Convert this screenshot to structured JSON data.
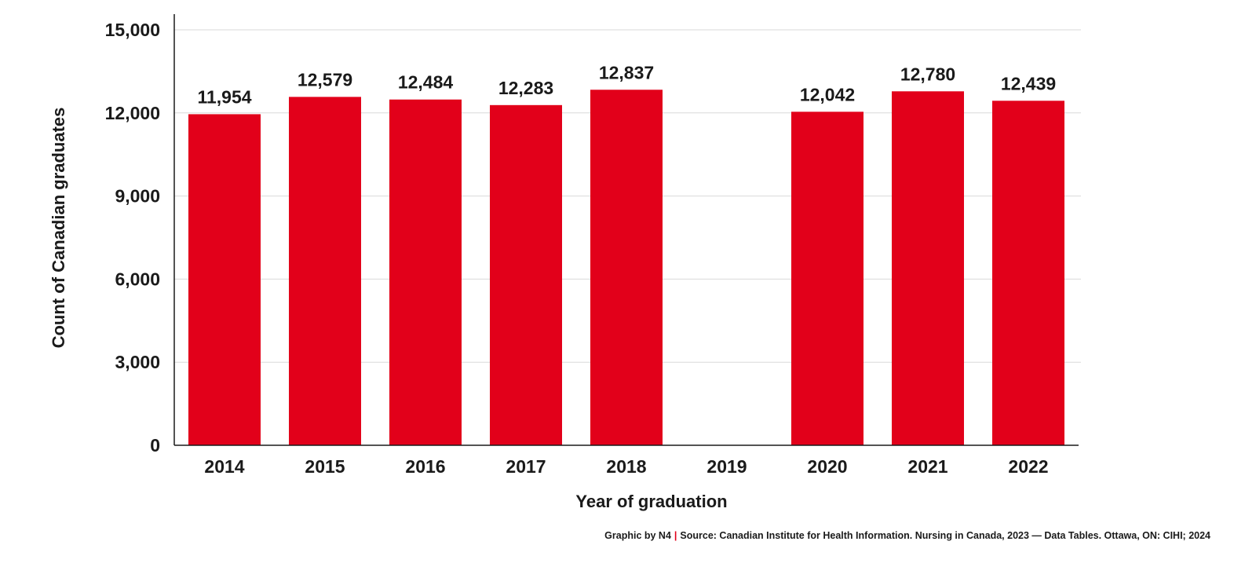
{
  "colors": {
    "bar": "#e2001a",
    "grid": "#d9d9d9",
    "axis": "#1a1a1a",
    "separator": "#e2001a"
  },
  "chart_data": {
    "type": "bar",
    "categories": [
      "2014",
      "2015",
      "2016",
      "2017",
      "2018",
      "2019",
      "2020",
      "2021",
      "2022"
    ],
    "values": [
      11954,
      12579,
      12484,
      12283,
      12837,
      null,
      12042,
      12780,
      12439
    ],
    "value_labels": [
      "11,954",
      "12,579",
      "12,484",
      "12,283",
      "12,837",
      "",
      "12,042",
      "12,780",
      "12,439"
    ],
    "xlabel": "Year of graduation",
    "ylabel": "Count of Canadian graduates",
    "ylim": [
      0,
      15000
    ],
    "yticks": [
      0,
      3000,
      6000,
      9000,
      12000,
      15000
    ],
    "ytick_labels": [
      "0",
      "3,000",
      "6,000",
      "9,000",
      "12,000",
      "15,000"
    ],
    "grid": true,
    "legend": "none"
  },
  "footer": {
    "credit": "Graphic by N4",
    "separator": "|",
    "source": "Source: Canadian Institute for Health Information. Nursing in Canada, 2023 — Data Tables. Ottawa, ON: CIHI; 2024"
  }
}
